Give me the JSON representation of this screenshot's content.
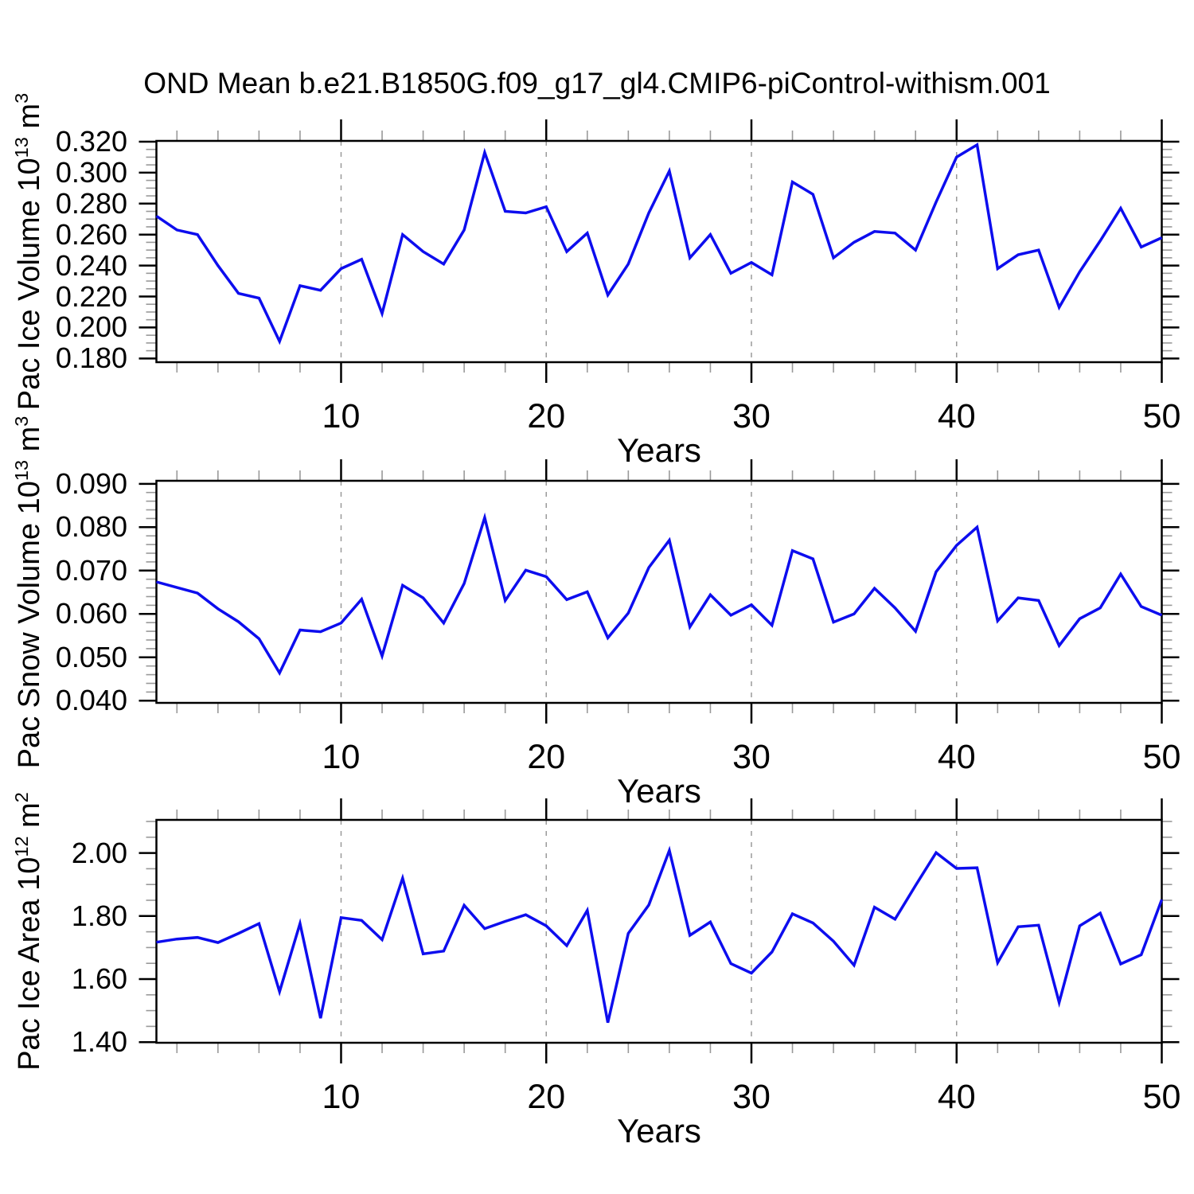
{
  "title": "OND Mean b.e21.B1850G.f09_g17_gl4.CMIP6-piControl-withism.001",
  "style": {
    "line_color": "#0d0dee",
    "frame_color": "#000000",
    "minor_tick_color": "#999999",
    "grid_color": "#9a9a9a"
  },
  "x_axis": {
    "label": "Years",
    "range": [
      1,
      50
    ],
    "major_ticks": [
      10,
      20,
      30,
      40,
      50
    ],
    "tick_labels": [
      "10",
      "20",
      "30",
      "40",
      "50"
    ],
    "minor_step": 2,
    "gridlines": [
      10,
      20,
      30,
      40
    ]
  },
  "chart_data": [
    {
      "type": "line",
      "name": "pac-ice-volume",
      "ylabel_text": "Pac Ice Volume 10^13 m^3",
      "ylabel_segments": [
        {
          "t": "Pac Ice Volume 10",
          "sup": false
        },
        {
          "t": "13",
          "sup": true
        },
        {
          "t": " m",
          "sup": false
        },
        {
          "t": "3",
          "sup": true
        }
      ],
      "xlabel": "Years",
      "x_start": 1,
      "x_step": 1,
      "ylim": [
        0.1776,
        0.3205
      ],
      "y_tick_values": [
        0.18,
        0.2,
        0.22,
        0.24,
        0.26,
        0.28,
        0.3,
        0.32
      ],
      "y_tick_labels": [
        "0.180",
        "0.200",
        "0.220",
        "0.240",
        "0.260",
        "0.280",
        "0.300",
        "0.320"
      ],
      "y_minor_step": 0.005,
      "grid": "x-dashed",
      "legend": "none",
      "values": [
        0.272,
        0.263,
        0.26,
        0.24,
        0.222,
        0.219,
        0.191,
        0.227,
        0.224,
        0.238,
        0.244,
        0.209,
        0.26,
        0.249,
        0.241,
        0.263,
        0.313,
        0.275,
        0.274,
        0.278,
        0.249,
        0.261,
        0.221,
        0.241,
        0.274,
        0.301,
        0.245,
        0.26,
        0.235,
        0.242,
        0.234,
        0.294,
        0.286,
        0.245,
        0.255,
        0.262,
        0.261,
        0.25,
        0.281,
        0.31,
        0.318,
        0.238,
        0.247,
        0.25,
        0.213,
        0.236,
        0.256,
        0.277,
        0.252,
        0.258
      ]
    },
    {
      "type": "line",
      "name": "pac-snow-volume",
      "ylabel_text": "Pac Snow Volume 10^13 m^3",
      "ylabel_segments": [
        {
          "t": "Pac Snow Volume 10",
          "sup": false
        },
        {
          "t": "13",
          "sup": true
        },
        {
          "t": " m",
          "sup": false
        },
        {
          "t": "3",
          "sup": true
        }
      ],
      "xlabel": "Years",
      "x_start": 1,
      "x_step": 1,
      "ylim": [
        0.0395,
        0.0907
      ],
      "y_tick_values": [
        0.04,
        0.05,
        0.06,
        0.07,
        0.08,
        0.09
      ],
      "y_tick_labels": [
        "0.040",
        "0.050",
        "0.060",
        "0.070",
        "0.080",
        "0.090"
      ],
      "y_minor_step": 0.002,
      "grid": "x-dashed",
      "legend": "none",
      "values": [
        0.0674,
        0.0661,
        0.0648,
        0.0612,
        0.0582,
        0.0543,
        0.0464,
        0.0563,
        0.0559,
        0.0579,
        0.0634,
        0.0503,
        0.0666,
        0.0637,
        0.0579,
        0.067,
        0.0822,
        0.0631,
        0.0701,
        0.0686,
        0.0633,
        0.0651,
        0.0545,
        0.0602,
        0.0707,
        0.077,
        0.057,
        0.0644,
        0.0597,
        0.0621,
        0.0574,
        0.0746,
        0.0727,
        0.0581,
        0.06,
        0.0659,
        0.0614,
        0.056,
        0.0697,
        0.0758,
        0.08,
        0.0584,
        0.0637,
        0.0631,
        0.0527,
        0.0589,
        0.0614,
        0.0692,
        0.0617,
        0.0597
      ]
    },
    {
      "type": "line",
      "name": "pac-ice-area",
      "ylabel_text": "Pac Ice Area 10^12 m^2",
      "ylabel_segments": [
        {
          "t": "Pac Ice Area 10",
          "sup": false
        },
        {
          "t": "12",
          "sup": true
        },
        {
          "t": " m",
          "sup": false
        },
        {
          "t": "2",
          "sup": true
        }
      ],
      "xlabel": "Years",
      "x_start": 1,
      "x_step": 1,
      "ylim": [
        1.398,
        2.105
      ],
      "y_tick_values": [
        1.4,
        1.6,
        1.8,
        2.0
      ],
      "y_tick_labels": [
        "1.40",
        "1.60",
        "1.80",
        "2.00"
      ],
      "y_minor_step": 0.05,
      "grid": "x-dashed",
      "legend": "none",
      "values": [
        1.717,
        1.727,
        1.732,
        1.716,
        1.745,
        1.776,
        1.56,
        1.776,
        1.476,
        1.795,
        1.786,
        1.725,
        1.92,
        1.68,
        1.689,
        1.834,
        1.76,
        1.783,
        1.804,
        1.769,
        1.706,
        1.818,
        1.462,
        1.745,
        1.835,
        2.008,
        1.739,
        1.781,
        1.649,
        1.619,
        1.686,
        1.807,
        1.778,
        1.72,
        1.644,
        1.828,
        1.79,
        1.897,
        2.001,
        1.951,
        1.953,
        1.652,
        1.766,
        1.771,
        1.526,
        1.769,
        1.809,
        1.648,
        1.677,
        1.852
      ]
    }
  ]
}
